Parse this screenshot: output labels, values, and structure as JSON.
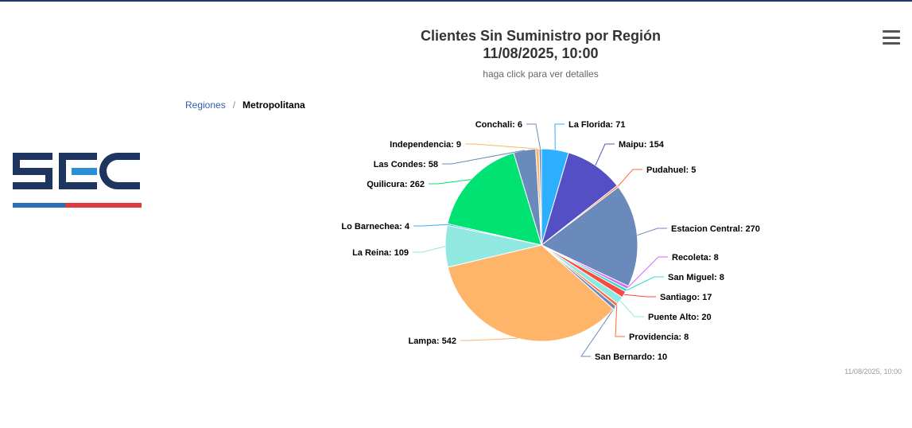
{
  "header": {
    "title_line1": "Clientes Sin Suministro por Región",
    "title_line2": "11/08/2025, 10:00",
    "subtitle": "haga click para ver detalles"
  },
  "menu_icon": "hamburger-menu-icon",
  "breadcrumb": {
    "root": "Regiones",
    "separator": "/",
    "current": "Metropolitana"
  },
  "logo": {
    "text": "SEC",
    "colors": {
      "navy": "#1e3560",
      "light_blue": "#2b8fd6",
      "red": "#e03a3e"
    }
  },
  "credit": "11/08/2025, 10:00",
  "chart_data": {
    "type": "pie",
    "title": "Clientes Sin Suministro por Región",
    "subtitle": "haga click para ver detalles",
    "slices": [
      {
        "name": "La Florida",
        "value": 71,
        "color": "#2caffe"
      },
      {
        "name": "Maipu",
        "value": 154,
        "color": "#544fc5"
      },
      {
        "name": "Pudahuel",
        "value": 5,
        "color": "#fe6a35"
      },
      {
        "name": "Estacion Central",
        "value": 270,
        "color": "#6b8abc"
      },
      {
        "name": "Recoleta",
        "value": 8,
        "color": "#d568fb"
      },
      {
        "name": "San Miguel",
        "value": 8,
        "color": "#2ee0ca"
      },
      {
        "name": "Santiago",
        "value": 17,
        "color": "#fa4b42"
      },
      {
        "name": "Puente Alto",
        "value": 20,
        "color": "#91e8e1"
      },
      {
        "name": "Providencia",
        "value": 8,
        "color": "#fe6a35"
      },
      {
        "name": "San Bernardo",
        "value": 10,
        "color": "#6b8abc"
      },
      {
        "name": "Lampa",
        "value": 542,
        "color": "#feb56a"
      },
      {
        "name": "La Reina",
        "value": 109,
        "color": "#91e8e1"
      },
      {
        "name": "Lo Barnechea",
        "value": 4,
        "color": "#2caffe"
      },
      {
        "name": "Quilicura",
        "value": 262,
        "color": "#00e272"
      },
      {
        "name": "Las Condes",
        "value": 58,
        "color": "#6b8abc"
      },
      {
        "name": "Independencia",
        "value": 9,
        "color": "#feb56a"
      },
      {
        "name": "Conchali",
        "value": 6,
        "color": "#6b8abc"
      }
    ]
  }
}
